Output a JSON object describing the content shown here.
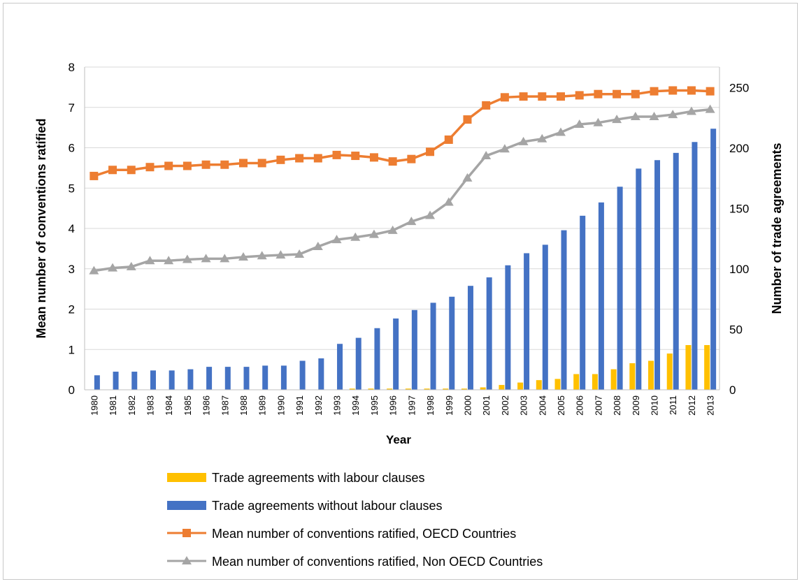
{
  "chart_data": {
    "type": "bar",
    "title": "",
    "xlabel": "Year",
    "ylabel_left": "Mean number of conventions ratified",
    "ylabel_right": "Number of trade agreements",
    "ylim_left": [
      0,
      8
    ],
    "ylim_right": [
      0,
      267
    ],
    "yticks_left": [
      0,
      1,
      2,
      3,
      4,
      5,
      6,
      7,
      8
    ],
    "yticks_right": [
      0,
      50,
      100,
      150,
      200,
      250
    ],
    "grid": true,
    "legend_position": "bottom",
    "categories": [
      "1980",
      "1981",
      "1982",
      "1983",
      "1984",
      "1985",
      "1986",
      "1987",
      "1988",
      "1989",
      "1990",
      "1991",
      "1992",
      "1993",
      "1994",
      "1995",
      "1996",
      "1997",
      "1998",
      "1999",
      "2000",
      "2001",
      "2002",
      "2003",
      "2004",
      "2005",
      "2006",
      "2007",
      "2008",
      "2009",
      "2010",
      "2011",
      "2012",
      "2013"
    ],
    "series": [
      {
        "name": "Trade agreements with labour clauses",
        "type": "bar",
        "axis": "right",
        "color": "#FFC000",
        "values": [
          0,
          0,
          0,
          0,
          0,
          0,
          0,
          0,
          0,
          0,
          0,
          0,
          0,
          0,
          1,
          1,
          1,
          1,
          1,
          1,
          1,
          2,
          4,
          6,
          8,
          9,
          13,
          13,
          17,
          22,
          24,
          30,
          37,
          37
        ]
      },
      {
        "name": "Trade agreements without labour clauses",
        "type": "bar",
        "axis": "right",
        "color": "#4472C4",
        "values": [
          12,
          15,
          15,
          16,
          16,
          17,
          19,
          19,
          19,
          20,
          20,
          24,
          26,
          38,
          43,
          51,
          59,
          66,
          72,
          77,
          86,
          93,
          103,
          113,
          120,
          132,
          144,
          155,
          168,
          183,
          190,
          196,
          205,
          216
        ]
      },
      {
        "name": "Mean number of conventions ratified, OECD Countries",
        "type": "line",
        "axis": "left",
        "marker": "square",
        "color": "#ED7D31",
        "values": [
          5.3,
          5.45,
          5.45,
          5.52,
          5.55,
          5.55,
          5.58,
          5.58,
          5.62,
          5.62,
          5.7,
          5.74,
          5.74,
          5.82,
          5.8,
          5.76,
          5.66,
          5.72,
          5.9,
          6.2,
          6.7,
          7.05,
          7.25,
          7.27,
          7.27,
          7.27,
          7.3,
          7.33,
          7.33,
          7.33,
          7.4,
          7.42,
          7.42,
          7.4
        ]
      },
      {
        "name": "Mean number of conventions ratified, Non OECD Countries",
        "type": "line",
        "axis": "left",
        "marker": "triangle",
        "color": "#A5A5A5",
        "values": [
          2.95,
          3.02,
          3.05,
          3.2,
          3.2,
          3.23,
          3.25,
          3.25,
          3.29,
          3.32,
          3.34,
          3.36,
          3.55,
          3.72,
          3.78,
          3.85,
          3.95,
          4.17,
          4.32,
          4.65,
          5.25,
          5.8,
          5.97,
          6.15,
          6.22,
          6.38,
          6.58,
          6.62,
          6.7,
          6.77,
          6.77,
          6.82,
          6.9,
          6.95
        ]
      }
    ]
  }
}
